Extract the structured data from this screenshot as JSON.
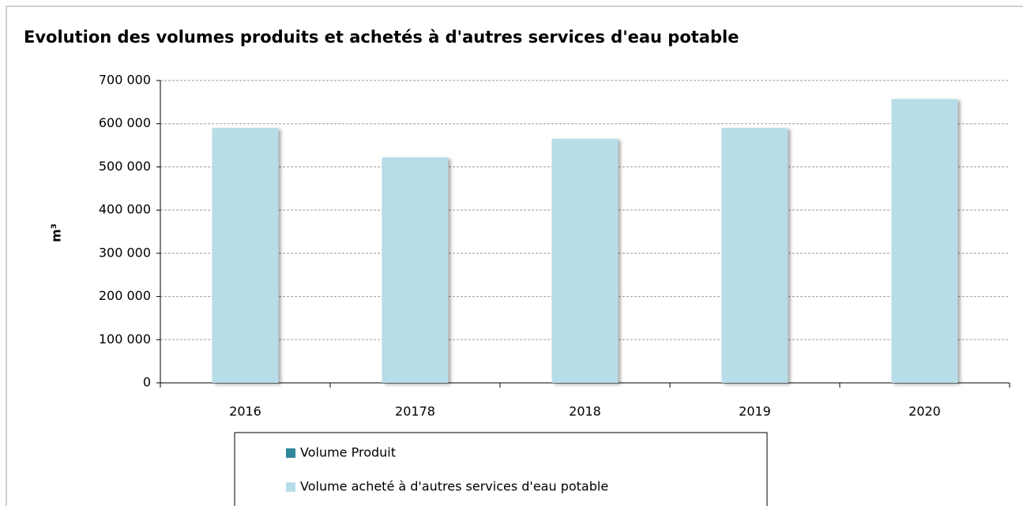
{
  "chart_data": {
    "type": "stacked_bar",
    "title": "Evolution des volumes produits et achetés à d'autres services d'eau potable",
    "y_label": "m³",
    "categories": [
      "2016",
      "20178",
      "2018",
      "2019",
      "2020"
    ],
    "series": [
      {
        "name": "Volume Produit",
        "color": "#31859c",
        "values": [
          0,
          0,
          0,
          0,
          0
        ]
      },
      {
        "name": "Volume acheté à d'autres services d'eau potable",
        "color": "#b7dde8",
        "values": [
          590000,
          522000,
          565000,
          590000,
          657000
        ]
      }
    ],
    "ylim": [
      0,
      700000
    ],
    "yticks": [
      0,
      {
        "value": 100000,
        "label": "100 000"
      },
      {
        "value": 200000,
        "label": "200 000"
      },
      {
        "value": 300000,
        "label": "300 000"
      },
      {
        "value": 400000,
        "label": "400 000"
      },
      {
        "value": 500000,
        "label": "500 000"
      },
      {
        "value": 600000,
        "label": "600 000"
      },
      {
        "value": 700000,
        "label": "700 000"
      }
    ],
    "grid": true
  }
}
